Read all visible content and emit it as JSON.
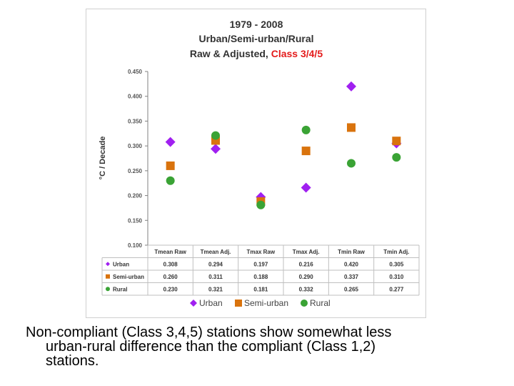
{
  "chart_data": {
    "type": "scatter",
    "title": [
      "1979 - 2008",
      "Urban/Semi-urban/Rural"
    ],
    "title_line3_black": "Raw & Adjusted, ",
    "title_line3_red": "Class 3/4/5",
    "ylabel": "°C / Decade",
    "ylim": [
      0.1,
      0.45
    ],
    "yticks": [
      "0.450",
      "0.400",
      "0.350",
      "0.300",
      "0.250",
      "0.200",
      "0.150",
      "0.100"
    ],
    "categories": [
      "Tmean Raw",
      "Tmean Adj.",
      "Tmax Raw",
      "Tmax Adj.",
      "Tmin Raw",
      "Tmin Adj."
    ],
    "series": [
      {
        "name": "Urban",
        "marker": "diamond",
        "color": "#a020f0",
        "values": [
          0.308,
          0.294,
          0.197,
          0.216,
          0.42,
          0.305
        ],
        "labels": [
          "0.308",
          "0.294",
          "0.197",
          "0.216",
          "0.420",
          "0.305"
        ]
      },
      {
        "name": "Semi-urban",
        "marker": "square",
        "color": "#d9730d",
        "values": [
          0.26,
          0.311,
          0.188,
          0.29,
          0.337,
          0.31
        ],
        "labels": [
          "0.260",
          "0.311",
          "0.188",
          "0.290",
          "0.337",
          "0.310"
        ]
      },
      {
        "name": "Rural",
        "marker": "circle",
        "color": "#3aa335",
        "values": [
          0.23,
          0.321,
          0.181,
          0.332,
          0.265,
          0.277
        ],
        "labels": [
          "0.230",
          "0.321",
          "0.181",
          "0.332",
          "0.265",
          "0.277"
        ]
      }
    ],
    "legend_position": "bottom",
    "grid": false
  },
  "caption": {
    "line1": "Non-compliant (Class 3,4,5) stations show somewhat less",
    "line2": "urban-rural difference than the compliant (Class 1,2)",
    "line3": "stations."
  },
  "colors": {
    "title_red": "#e41b1b",
    "axis": "#808080"
  }
}
